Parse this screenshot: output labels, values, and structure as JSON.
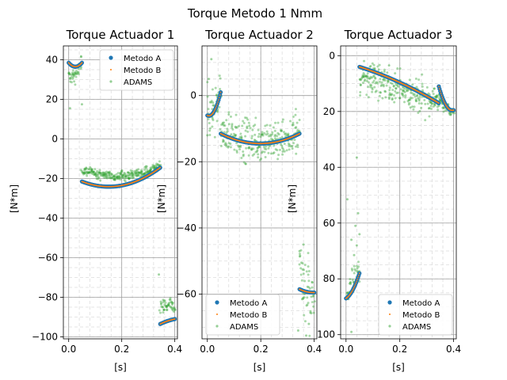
{
  "figure": {
    "suptitle": "Torque  Metodo 1 Nmm",
    "colors": {
      "metodo_a": "#1f77b4",
      "metodo_b": "#ff7f0e",
      "adams": "#2ca02c",
      "grid_major": "#a0a0a0",
      "grid_minor": "#dddddd"
    }
  },
  "chart_data": [
    {
      "type": "scatter",
      "title": "Torque Actuador 1",
      "xlabel": "[s]",
      "ylabel": "[N*m]",
      "xlim": [
        -0.02,
        0.41
      ],
      "ylim": [
        -101,
        47
      ],
      "xticks": [
        0.0,
        0.2,
        0.4
      ],
      "xtick_labels": [
        "0.0",
        "0.2",
        "0.4"
      ],
      "yticks": [
        40,
        20,
        0,
        -20,
        -40,
        -60,
        -80,
        -100
      ],
      "ytick_labels": [
        "40",
        "20",
        "0",
        "−20",
        "−40",
        "−60",
        "−80",
        "−100"
      ],
      "grid": true,
      "legend": {
        "placement": "top-right",
        "entries": [
          "Metodo A",
          "Metodo B",
          "ADAMS"
        ]
      },
      "series": [
        {
          "name": "Metodo A",
          "segments": [
            {
              "t0": 0.0,
              "t1": 0.05,
              "y0": 38.5,
              "y1": 38.5,
              "ymid": 36.5
            },
            {
              "t0": 0.05,
              "t1": 0.345,
              "y0": -21.5,
              "y1": -14.5,
              "ymid": -24.0,
              "tmid": 0.13
            },
            {
              "t0": 0.345,
              "t1": 0.4,
              "y0": -93.5,
              "y1": -91.0,
              "ymid": -92.0
            }
          ]
        },
        {
          "name": "Metodo B",
          "segments": [
            {
              "t0": 0.0,
              "t1": 0.05,
              "y0": 38.5,
              "y1": 38.5,
              "ymid": 36.5
            },
            {
              "t0": 0.05,
              "t1": 0.345,
              "y0": -21.5,
              "y1": -14.5,
              "ymid": -24.0,
              "tmid": 0.13
            },
            {
              "t0": 0.345,
              "t1": 0.4,
              "y0": -93.5,
              "y1": -91.0,
              "ymid": -92.0
            }
          ]
        },
        {
          "name": "ADAMS",
          "segments": [
            {
              "t0": 0.0,
              "t1": 0.05,
              "y0": 31.0,
              "y1": 38.0,
              "ymid": 33.0,
              "noise": 2.0
            },
            {
              "t0": 0.05,
              "t1": 0.345,
              "y0": -15.5,
              "y1": -14.0,
              "ymid": -18.5,
              "tmid": 0.2,
              "noise": 1.2
            },
            {
              "t0": 0.345,
              "t1": 0.4,
              "y0": -85.0,
              "y1": -83.0,
              "ymid": -84.5,
              "noise": 2.0
            }
          ],
          "outliers": [
            [
              0.005,
              15.5
            ],
            [
              0.05,
              17.5
            ],
            [
              0.34,
              -68.5
            ],
            [
              0.02,
              32.0
            ]
          ]
        }
      ]
    },
    {
      "type": "scatter",
      "title": "Torque Actuador 2",
      "xlabel": "[s]",
      "ylabel": "[N*m]",
      "xlim": [
        -0.02,
        0.41
      ],
      "ylim": [
        -73.5,
        15
      ],
      "xticks": [
        0.0,
        0.2,
        0.4
      ],
      "xtick_labels": [
        "0.0",
        "0.2",
        "0.4"
      ],
      "yticks": [
        0,
        -20,
        -40,
        -60
      ],
      "ytick_labels": [
        "0",
        "−20",
        "−40",
        "−60"
      ],
      "grid": true,
      "legend": {
        "placement": "bottom-left",
        "entries": [
          "Metodo A",
          "Metodo B",
          "ADAMS"
        ]
      },
      "series": [
        {
          "name": "Metodo A",
          "segments": [
            {
              "t0": 0.0,
              "t1": 0.05,
              "y0": -6.0,
              "y1": 1.0,
              "ymid": -4.0,
              "tmid": 0.03
            },
            {
              "t0": 0.05,
              "t1": 0.345,
              "y0": -11.5,
              "y1": -11.5,
              "ymid": -14.5,
              "tmid": 0.2
            },
            {
              "t0": 0.345,
              "t1": 0.4,
              "y0": -58.5,
              "y1": -59.5,
              "ymid": -59.3
            }
          ]
        },
        {
          "name": "Metodo B",
          "segments": [
            {
              "t0": 0.0,
              "t1": 0.05,
              "y0": -6.0,
              "y1": 1.0,
              "ymid": -4.0,
              "tmid": 0.03
            },
            {
              "t0": 0.05,
              "t1": 0.345,
              "y0": -11.5,
              "y1": -11.5,
              "ymid": -14.5,
              "tmid": 0.2
            },
            {
              "t0": 0.345,
              "t1": 0.4,
              "y0": -58.5,
              "y1": -59.5,
              "ymid": -59.3
            }
          ]
        },
        {
          "name": "ADAMS",
          "segments": [
            {
              "t0": 0.0,
              "t1": 0.05,
              "y0": -6.0,
              "y1": 0.0,
              "ymid": -4.0,
              "noise": 4.0
            },
            {
              "t0": 0.05,
              "t1": 0.345,
              "y0": -11.0,
              "y1": -11.5,
              "ymid": -13.5,
              "tmid": 0.2,
              "noise": 3.0
            },
            {
              "t0": 0.345,
              "t1": 0.4,
              "y0": -50.0,
              "y1": -66.0,
              "ymid": -58.0,
              "noise": 6.0
            }
          ],
          "outliers": [
            [
              0.005,
              5.0
            ],
            [
              0.015,
              11.0
            ],
            [
              0.0,
              -12.0
            ],
            [
              0.345,
              -47.0
            ],
            [
              0.36,
              -45.0
            ],
            [
              0.37,
              -72.5
            ],
            [
              0.34,
              -71.0
            ],
            [
              0.38,
              -69.0
            ],
            [
              0.355,
              -61.5
            ]
          ]
        }
      ]
    },
    {
      "type": "scatter",
      "title": "Torque Actuador 3",
      "xlabel": "[s]",
      "ylabel": "[N*m]",
      "xlim": [
        -0.02,
        0.41
      ],
      "ylim": [
        -101.5,
        3.5
      ],
      "xticks": [
        0.0,
        0.2,
        0.4
      ],
      "xtick_labels": [
        "0.0",
        "0.2",
        "0.4"
      ],
      "yticks": [
        0,
        20,
        40,
        60,
        80,
        100
      ],
      "ytick_labels": [
        "0",
        "20",
        "40",
        "60",
        "80",
        "100"
      ],
      "y_inverted": true,
      "grid": true,
      "legend": {
        "placement": "bottom-right",
        "entries": [
          "Metodo A",
          "Metodo B",
          "ADAMS"
        ]
      },
      "series": [
        {
          "name": "Metodo A",
          "segments": [
            {
              "t0": 0.0,
              "t1": 0.05,
              "y0": 87.0,
              "y1": 78.0,
              "ymid": 84.0
            },
            {
              "t0": 0.05,
              "t1": 0.345,
              "y0": 4.0,
              "y1": 17.0,
              "ymid": 9.5
            },
            {
              "t0": 0.345,
              "t1": 0.4,
              "y0": 11.0,
              "y1": 19.5,
              "ymid": 17.5,
              "tmid": 0.37
            }
          ]
        },
        {
          "name": "Metodo B",
          "segments": [
            {
              "t0": 0.0,
              "t1": 0.05,
              "y0": 87.0,
              "y1": 78.0,
              "ymid": 84.0
            },
            {
              "t0": 0.05,
              "t1": 0.345,
              "y0": 4.0,
              "y1": 17.0,
              "ymid": 9.5
            },
            {
              "t0": 0.345,
              "t1": 0.4,
              "y0": 11.0,
              "y1": 19.5,
              "ymid": 17.5,
              "tmid": 0.37
            }
          ]
        },
        {
          "name": "ADAMS",
          "segments": [
            {
              "t0": 0.0,
              "t1": 0.05,
              "y0": 85.0,
              "y1": 77.0,
              "ymid": 82.0,
              "noise": 3.0
            },
            {
              "t0": 0.05,
              "t1": 0.345,
              "y0": 8.0,
              "y1": 16.0,
              "ymid": 12.0,
              "noise": 3.0
            },
            {
              "t0": 0.345,
              "t1": 0.4,
              "y0": 16.0,
              "y1": 20.0,
              "ymid": 18.5,
              "noise": 1.0
            }
          ],
          "outliers": [
            [
              0.005,
              51.5
            ],
            [
              0.04,
              36.5
            ],
            [
              0.045,
              56.5
            ],
            [
              0.035,
              61.0
            ],
            [
              0.04,
              68.0
            ],
            [
              0.02,
              66.0
            ],
            [
              0.05,
              64.0
            ],
            [
              0.03,
              71.5
            ],
            [
              0.02,
              99.0
            ],
            [
              0.16,
              3.5
            ]
          ]
        }
      ]
    }
  ]
}
